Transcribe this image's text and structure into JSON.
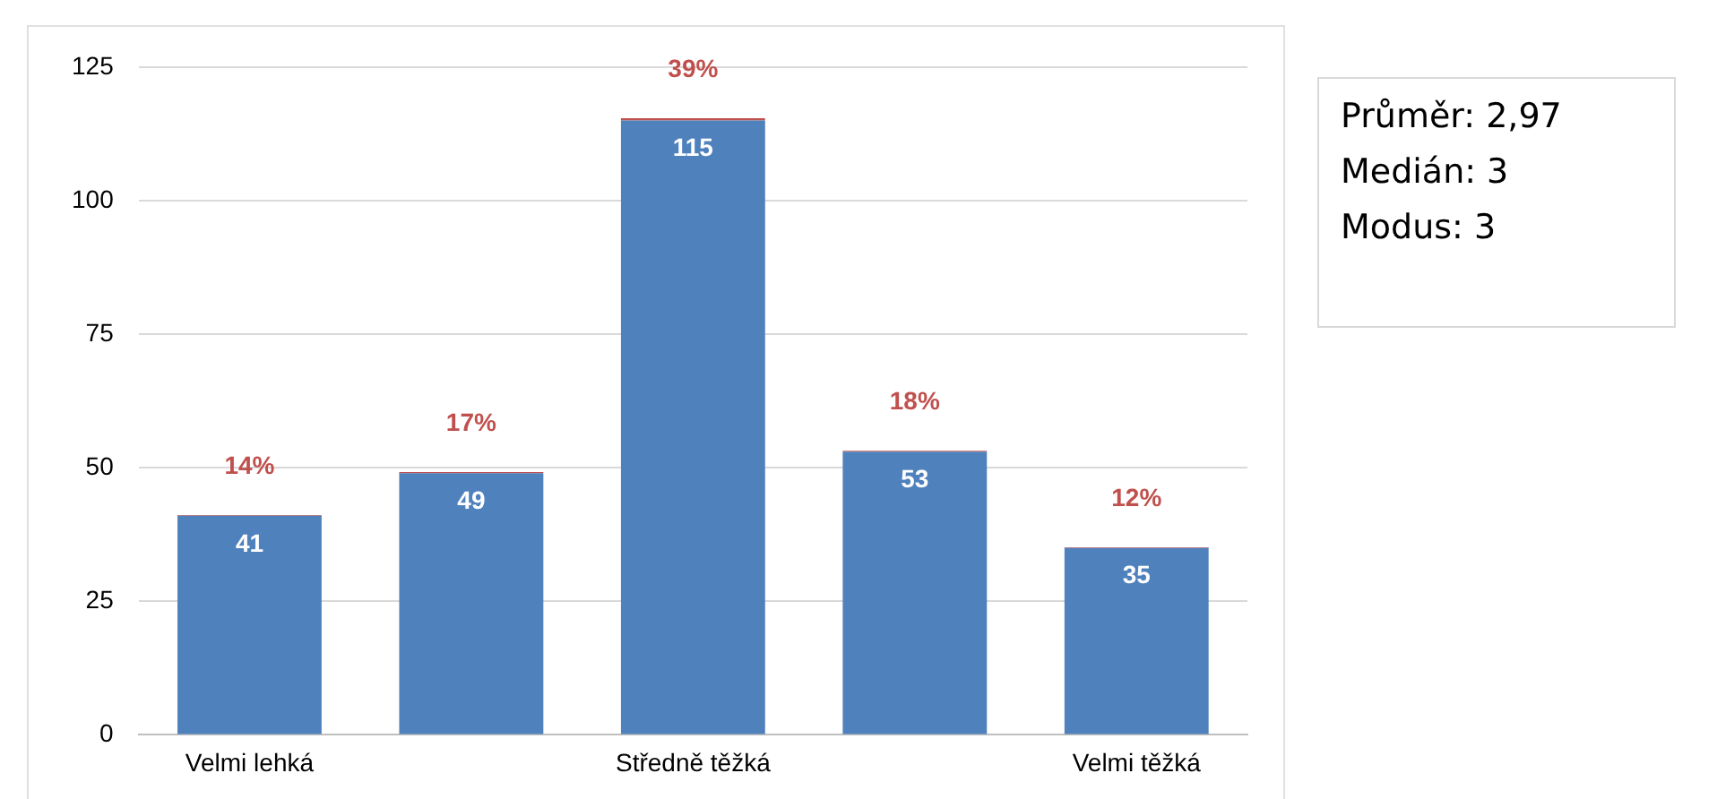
{
  "chart_data": {
    "type": "bar",
    "stacked": true,
    "categories": [
      "Velmi lehká",
      null,
      "Středně těžká",
      null,
      "Velmi těžká"
    ],
    "series": [
      {
        "color": "#4f81bd",
        "values": [
          41,
          49,
          115,
          53,
          35
        ],
        "value_labels": [
          "41",
          "49",
          "115",
          "53",
          "35"
        ]
      },
      {
        "color": "#c0504d",
        "values": [
          0.14,
          0.17,
          0.39,
          0.18,
          0.12
        ],
        "value_labels": [
          "14%",
          "17%",
          "39%",
          "18%",
          "12%"
        ]
      }
    ],
    "ylim": [
      0,
      125
    ],
    "yticks": [
      0,
      25,
      50,
      75,
      100,
      125
    ],
    "grid": "y",
    "legend": false,
    "annotations": [
      "Průměr: 2,97",
      "Medián: 3",
      "Modus: 3"
    ]
  }
}
